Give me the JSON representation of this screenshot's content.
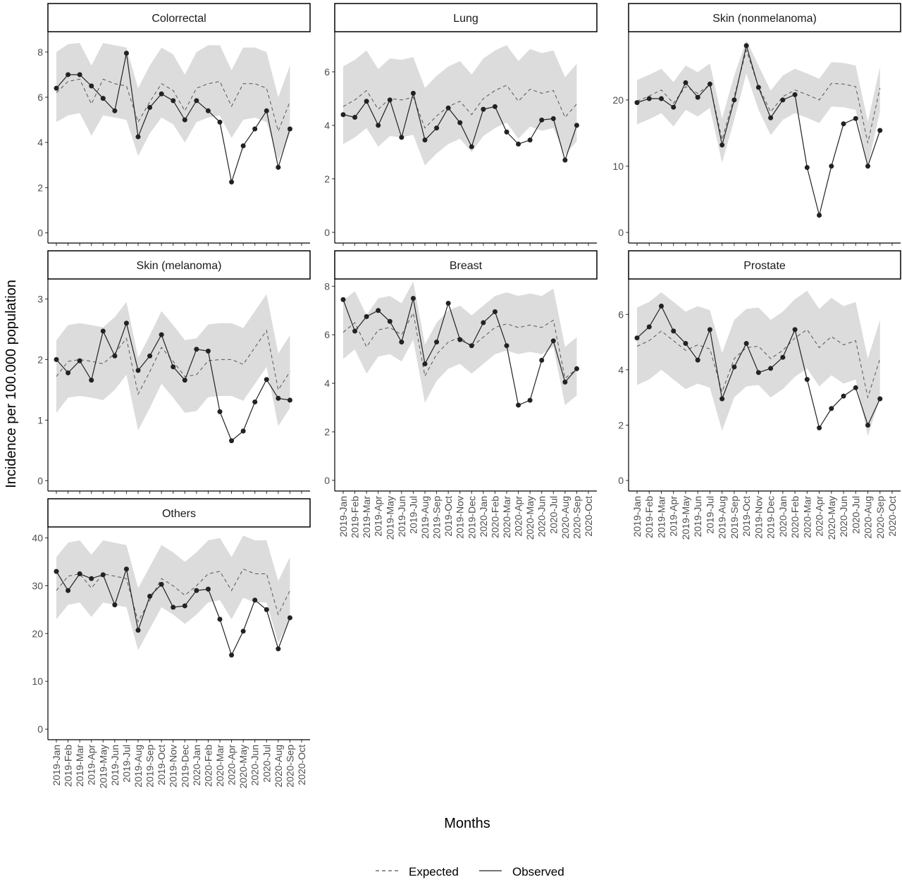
{
  "chart_data": {
    "type": "line",
    "y_label": "Incidence per 100.000 population",
    "x_label": "Months",
    "categories": [
      "2019-Jan",
      "2019-Feb",
      "2019-Mar",
      "2019-Apr",
      "2019-May",
      "2019-Jun",
      "2019-Jul",
      "2019-Aug",
      "2019-Sep",
      "2019-Oct",
      "2019-Nov",
      "2019-Dec",
      "2020-Jan",
      "2020-Feb",
      "2020-Mar",
      "2020-Apr",
      "2020-May",
      "2020-Jun",
      "2020-Jul",
      "2020-Aug",
      "2020-Sep",
      "2020-Oct"
    ],
    "panels": [
      {
        "title": "Colorrectal",
        "ylim": [
          -0.45,
          8.9
        ],
        "yticks": [
          0,
          2,
          4,
          6,
          8
        ],
        "series": [
          {
            "name": "Expected",
            "color": "#555555",
            "values": [
              6.2,
              6.7,
              6.8,
              5.7,
              6.8,
              6.6,
              6.5,
              4.9,
              5.8,
              6.6,
              6.3,
              5.4,
              6.4,
              6.6,
              6.7,
              5.6,
              6.6,
              6.6,
              6.4,
              4.5,
              5.8,
              null
            ],
            "upper": [
              8.0,
              8.35,
              8.4,
              7.4,
              8.4,
              8.3,
              8.2,
              6.4,
              7.4,
              8.2,
              7.9,
              7.0,
              8.0,
              8.3,
              8.3,
              7.2,
              8.2,
              8.2,
              8.0,
              6.0,
              7.4,
              null
            ],
            "lower": [
              4.9,
              5.2,
              5.3,
              4.3,
              5.2,
              5.1,
              5.0,
              3.4,
              4.4,
              5.1,
              4.8,
              4.0,
              4.9,
              5.1,
              5.2,
              4.2,
              5.0,
              5.1,
              4.9,
              3.2,
              4.4,
              null
            ]
          },
          {
            "name": "Observed",
            "color": "#222222",
            "values": [
              6.4,
              7.0,
              7.0,
              6.5,
              5.95,
              5.4,
              7.95,
              4.25,
              5.55,
              6.15,
              5.85,
              5.0,
              5.85,
              5.4,
              4.9,
              2.25,
              3.85,
              4.6,
              5.4,
              2.9,
              4.6,
              null
            ]
          }
        ]
      },
      {
        "title": "Lung",
        "ylim": [
          -0.4,
          7.5
        ],
        "yticks": [
          0,
          2,
          4,
          6
        ],
        "series": [
          {
            "name": "Expected",
            "color": "#555555",
            "values": [
              4.7,
              4.95,
              5.3,
              4.6,
              5.0,
              4.95,
              5.05,
              3.9,
              4.35,
              4.7,
              4.9,
              4.4,
              5.0,
              5.3,
              5.5,
              4.9,
              5.35,
              5.2,
              5.3,
              4.3,
              4.8,
              null
            ],
            "upper": [
              6.2,
              6.45,
              6.8,
              6.1,
              6.5,
              6.45,
              6.55,
              5.4,
              5.85,
              6.2,
              6.4,
              5.9,
              6.5,
              6.8,
              7.0,
              6.4,
              6.85,
              6.7,
              6.8,
              5.8,
              6.3,
              null
            ],
            "lower": [
              3.3,
              3.55,
              3.9,
              3.2,
              3.6,
              3.55,
              3.65,
              2.5,
              2.95,
              3.3,
              3.5,
              3.0,
              3.6,
              3.9,
              4.1,
              3.5,
              3.95,
              3.8,
              3.9,
              2.9,
              3.4,
              null
            ]
          },
          {
            "name": "Observed",
            "color": "#222222",
            "values": [
              4.4,
              4.3,
              4.9,
              4.0,
              4.95,
              3.55,
              5.2,
              3.45,
              3.9,
              4.65,
              4.1,
              3.2,
              4.6,
              4.7,
              3.75,
              3.3,
              3.45,
              4.2,
              4.25,
              2.7,
              4.0,
              null
            ]
          }
        ]
      },
      {
        "title": "Skin (nonmelanoma)",
        "ylim": [
          -1.6,
          30.3
        ],
        "yticks": [
          0,
          10,
          20
        ],
        "series": [
          {
            "name": "Expected",
            "color": "#555555",
            "values": [
              19.8,
              20.6,
              21.5,
              19.5,
              22.0,
              21.0,
              22.3,
              14.0,
              20.5,
              27.5,
              22.0,
              18.2,
              20.5,
              21.5,
              20.8,
              20.0,
              22.5,
              22.4,
              22.0,
              13.5,
              21.8,
              null
            ],
            "upper": [
              23.0,
              23.8,
              24.7,
              22.7,
              25.2,
              24.2,
              25.5,
              17.2,
              23.7,
              29.0,
              25.2,
              21.4,
              23.7,
              24.7,
              24.0,
              23.2,
              25.7,
              25.6,
              25.2,
              16.7,
              25.0,
              null
            ],
            "lower": [
              16.3,
              17.1,
              18.0,
              16.0,
              18.5,
              17.5,
              18.8,
              10.5,
              17.0,
              24.0,
              18.5,
              14.7,
              17.0,
              18.0,
              17.3,
              16.5,
              19.0,
              18.9,
              18.5,
              10.0,
              18.3,
              null
            ]
          },
          {
            "name": "Observed",
            "color": "#222222",
            "values": [
              19.6,
              20.2,
              20.2,
              18.9,
              22.6,
              20.4,
              22.4,
              13.2,
              20.0,
              28.2,
              21.9,
              17.3,
              20.0,
              20.8,
              9.8,
              2.6,
              10.0,
              16.4,
              17.2,
              10.0,
              15.4,
              null
            ]
          }
        ]
      },
      {
        "title": "Skin (melanoma)",
        "ylim": [
          -0.17,
          3.33
        ],
        "yticks": [
          0,
          1,
          2,
          3
        ],
        "series": [
          {
            "name": "Expected",
            "color": "#555555",
            "values": [
              1.72,
              1.97,
              2.0,
              1.97,
              1.93,
              2.1,
              2.35,
              1.43,
              1.8,
              2.2,
              1.97,
              1.72,
              1.75,
              1.98,
              2.0,
              2.0,
              1.92,
              2.2,
              2.48,
              1.5,
              1.8,
              null
            ],
            "upper": [
              2.32,
              2.57,
              2.6,
              2.57,
              2.53,
              2.7,
              2.95,
              2.03,
              2.4,
              2.8,
              2.57,
              2.32,
              2.35,
              2.58,
              2.6,
              2.6,
              2.52,
              2.8,
              3.08,
              2.1,
              2.4,
              null
            ],
            "lower": [
              1.12,
              1.37,
              1.4,
              1.37,
              1.33,
              1.5,
              1.75,
              0.83,
              1.2,
              1.6,
              1.37,
              1.12,
              1.15,
              1.38,
              1.4,
              1.4,
              1.32,
              1.6,
              1.88,
              0.9,
              1.2,
              null
            ]
          },
          {
            "name": "Observed",
            "color": "#222222",
            "values": [
              2.0,
              1.78,
              1.98,
              1.66,
              2.47,
              2.06,
              2.6,
              1.82,
              2.06,
              2.41,
              1.88,
              1.66,
              2.17,
              2.14,
              1.14,
              0.66,
              0.82,
              1.3,
              1.67,
              1.36,
              1.33,
              null
            ]
          }
        ]
      },
      {
        "title": "Breast",
        "ylim": [
          -0.44,
          8.3
        ],
        "yticks": [
          0,
          2,
          4,
          6,
          8
        ],
        "series": [
          {
            "name": "Expected",
            "color": "#555555",
            "values": [
              6.1,
              6.5,
              5.5,
              6.2,
              6.3,
              6.0,
              6.9,
              4.3,
              5.2,
              5.7,
              5.9,
              5.5,
              5.9,
              6.3,
              6.45,
              6.3,
              6.4,
              6.3,
              6.6,
              4.2,
              4.6,
              null
            ],
            "upper": [
              7.4,
              7.8,
              6.8,
              7.5,
              7.6,
              7.3,
              8.2,
              5.6,
              6.5,
              7.0,
              7.2,
              6.8,
              7.2,
              7.6,
              7.75,
              7.6,
              7.7,
              7.6,
              7.9,
              5.5,
              5.9,
              null
            ],
            "lower": [
              5.0,
              5.4,
              4.4,
              5.1,
              5.2,
              4.9,
              5.8,
              3.2,
              4.1,
              4.6,
              4.8,
              4.4,
              4.8,
              5.2,
              5.35,
              5.2,
              5.3,
              5.2,
              5.5,
              3.1,
              3.5,
              null
            ]
          },
          {
            "name": "Observed",
            "color": "#222222",
            "values": [
              7.45,
              6.15,
              6.75,
              7.0,
              6.55,
              5.7,
              7.5,
              4.8,
              5.7,
              7.3,
              5.8,
              5.55,
              6.5,
              6.95,
              5.55,
              3.1,
              3.3,
              4.95,
              5.75,
              4.05,
              4.6,
              null
            ]
          }
        ]
      },
      {
        "title": "Prostate",
        "ylim": [
          -0.38,
          7.28
        ],
        "yticks": [
          0,
          2,
          4,
          6
        ],
        "series": [
          {
            "name": "Expected",
            "color": "#555555",
            "values": [
              4.85,
              5.05,
              5.4,
              5.05,
              4.7,
              4.9,
              4.75,
              3.2,
              4.4,
              4.8,
              4.85,
              4.4,
              4.7,
              5.15,
              5.45,
              4.8,
              5.2,
              4.9,
              5.05,
              3.0,
              4.4,
              null
            ],
            "upper": [
              6.25,
              6.45,
              6.8,
              6.45,
              6.1,
              6.3,
              6.15,
              4.6,
              5.8,
              6.2,
              6.25,
              5.8,
              6.1,
              6.55,
              6.85,
              6.2,
              6.6,
              6.3,
              6.45,
              4.4,
              5.8,
              null
            ],
            "lower": [
              3.45,
              3.65,
              4.0,
              3.65,
              3.3,
              3.5,
              3.35,
              1.8,
              3.0,
              3.4,
              3.45,
              3.0,
              3.3,
              3.75,
              4.05,
              3.4,
              3.8,
              3.5,
              3.65,
              1.6,
              3.0,
              null
            ]
          },
          {
            "name": "Observed",
            "color": "#222222",
            "values": [
              5.15,
              5.55,
              6.3,
              5.4,
              4.95,
              4.35,
              5.45,
              2.95,
              4.1,
              4.95,
              3.9,
              4.05,
              4.45,
              5.45,
              3.65,
              1.9,
              2.6,
              3.05,
              3.35,
              2.0,
              2.95,
              null
            ]
          }
        ]
      },
      {
        "title": "Others",
        "ylim": [
          -2.2,
          42.3
        ],
        "yticks": [
          0,
          10,
          20,
          30,
          40
        ],
        "series": [
          {
            "name": "Expected",
            "color": "#555555",
            "values": [
              29.0,
              32.0,
              32.5,
              29.5,
              32.5,
              32.0,
              31.5,
              22.5,
              27.0,
              31.5,
              30.0,
              28.0,
              30.0,
              32.5,
              33.0,
              29.0,
              33.5,
              32.5,
              32.5,
              24.0,
              29.0,
              null
            ],
            "upper": [
              36.0,
              39.0,
              39.5,
              36.5,
              39.5,
              39.0,
              38.5,
              29.5,
              34.0,
              38.5,
              37.0,
              35.0,
              37.0,
              39.5,
              40.0,
              36.0,
              40.5,
              39.5,
              39.5,
              31.0,
              36.0,
              null
            ],
            "lower": [
              23.0,
              26.0,
              26.5,
              23.5,
              26.5,
              26.0,
              25.5,
              16.5,
              21.0,
              25.5,
              24.0,
              22.0,
              24.0,
              26.5,
              27.0,
              23.0,
              27.5,
              26.5,
              26.5,
              18.0,
              23.0,
              null
            ]
          },
          {
            "name": "Observed",
            "color": "#222222",
            "values": [
              33.0,
              29.0,
              32.5,
              31.5,
              32.3,
              26.0,
              33.5,
              20.7,
              27.8,
              30.3,
              25.5,
              25.8,
              29.0,
              29.3,
              23.0,
              15.5,
              20.5,
              27.0,
              25.0,
              16.8,
              23.3,
              null
            ]
          }
        ]
      }
    ]
  }
}
